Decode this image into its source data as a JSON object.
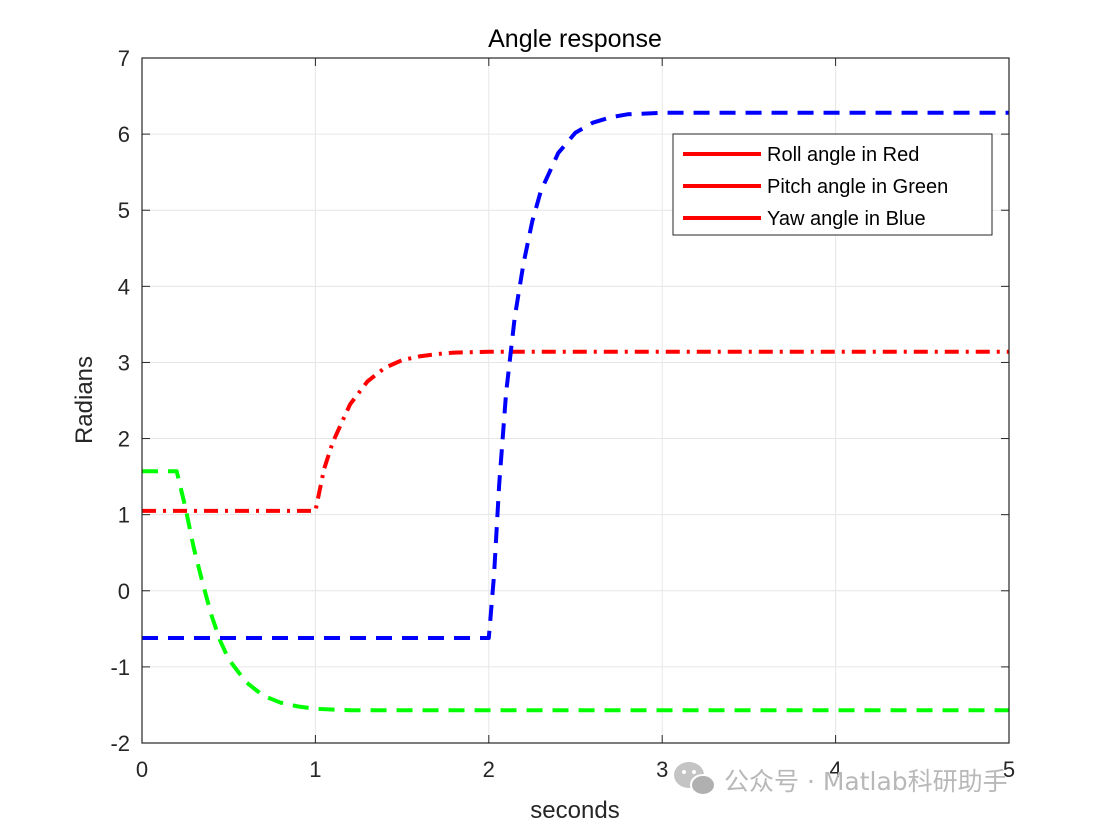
{
  "chart_data": {
    "type": "line",
    "title": "Angle response",
    "xlabel": "seconds",
    "ylabel": "Radians",
    "xlim": [
      0,
      5
    ],
    "ylim": [
      -2,
      7
    ],
    "xticks": [
      0,
      1,
      2,
      3,
      4,
      5
    ],
    "yticks": [
      -2,
      -1,
      0,
      1,
      2,
      3,
      4,
      5,
      6,
      7
    ],
    "grid": true,
    "legend_position": "top-right",
    "legend_line_color": "#ff0000",
    "legend": [
      "Roll angle in Red",
      "Pitch angle in Green",
      "Yaw angle in Blue"
    ],
    "series": [
      {
        "name": "Roll angle in Red",
        "color": "#ff0000",
        "style": "dash-dot",
        "x": [
          0,
          0.5,
          1.0,
          1.05,
          1.1,
          1.15,
          1.2,
          1.3,
          1.4,
          1.5,
          1.6,
          1.7,
          1.8,
          2.0,
          2.5,
          3.0,
          4.0,
          5.0
        ],
        "y": [
          1.05,
          1.05,
          1.05,
          1.6,
          1.95,
          2.2,
          2.45,
          2.75,
          2.93,
          3.03,
          3.08,
          3.11,
          3.13,
          3.14,
          3.14,
          3.14,
          3.14,
          3.14
        ]
      },
      {
        "name": "Pitch angle in Green",
        "color": "#00ff00",
        "style": "dashed",
        "x": [
          0,
          0.2,
          0.25,
          0.3,
          0.35,
          0.4,
          0.45,
          0.5,
          0.6,
          0.7,
          0.8,
          0.9,
          1.0,
          1.2,
          1.5,
          2.0,
          3.0,
          4.0,
          5.0
        ],
        "y": [
          1.57,
          1.57,
          1.1,
          0.55,
          0.1,
          -0.32,
          -0.65,
          -0.9,
          -1.2,
          -1.38,
          -1.47,
          -1.52,
          -1.55,
          -1.57,
          -1.57,
          -1.57,
          -1.57,
          -1.57,
          -1.57
        ]
      },
      {
        "name": "Yaw angle in Blue",
        "color": "#0000ff",
        "style": "dashed",
        "x": [
          0,
          1.0,
          2.0,
          2.03,
          2.06,
          2.1,
          2.15,
          2.2,
          2.25,
          2.3,
          2.4,
          2.5,
          2.6,
          2.7,
          2.8,
          3.0,
          3.5,
          4.0,
          5.0
        ],
        "y": [
          -0.62,
          -0.62,
          -0.62,
          0.2,
          1.4,
          2.6,
          3.6,
          4.3,
          4.85,
          5.25,
          5.75,
          6.02,
          6.15,
          6.22,
          6.26,
          6.28,
          6.28,
          6.28,
          6.28
        ]
      }
    ]
  },
  "watermark": {
    "text": "公众号 · Matlab科研助手",
    "icon": "wechat-icon"
  }
}
